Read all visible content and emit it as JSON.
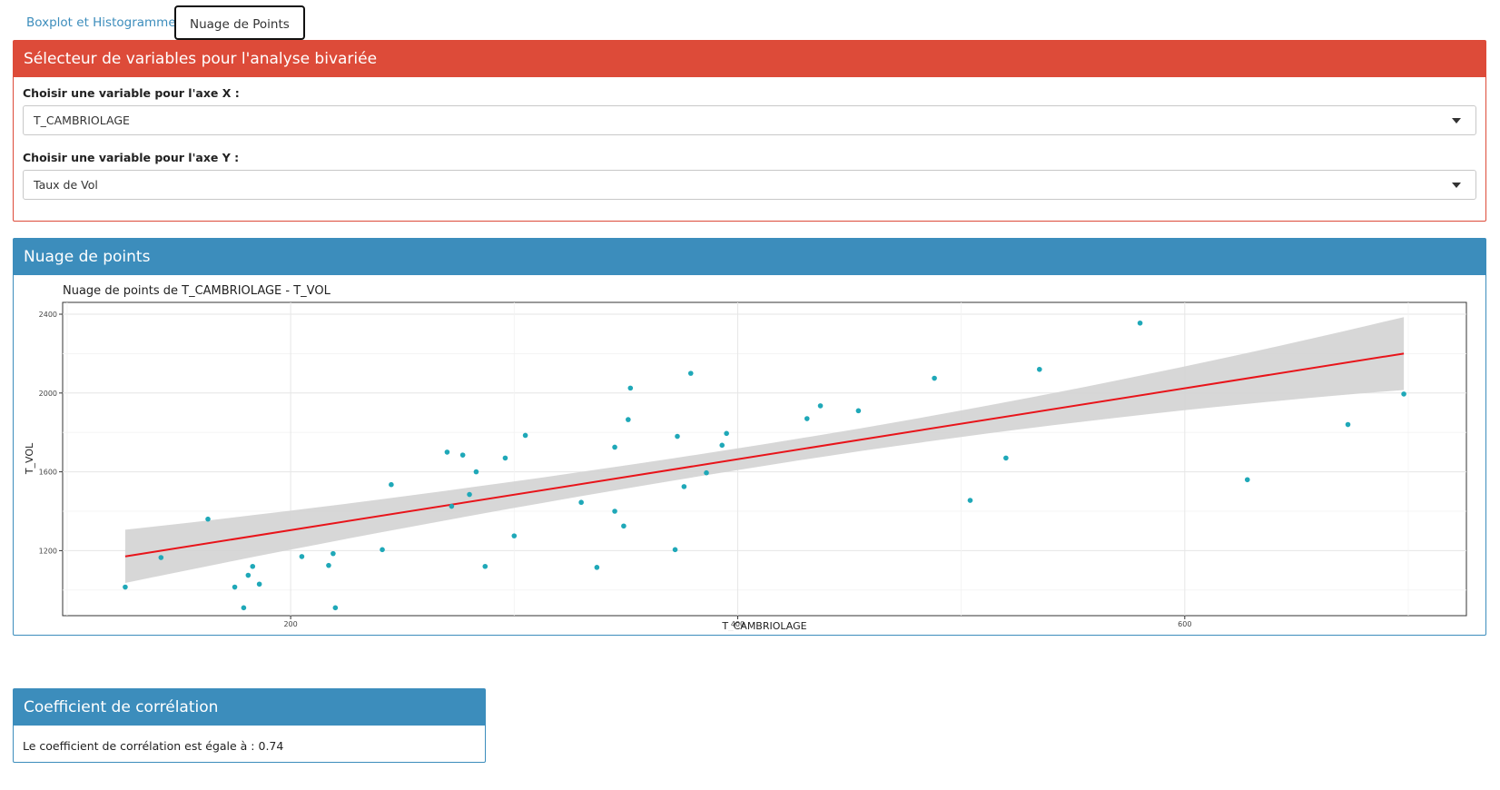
{
  "tabs": [
    {
      "label": "Boxplot et Histogramme"
    },
    {
      "label": "Nuage de Points"
    }
  ],
  "selector_box": {
    "title": "Sélecteur de variables pour l'analyse bivariée",
    "x_label": "Choisir une variable pour l'axe X :",
    "x_value": "T_CAMBRIOLAGE",
    "y_label": "Choisir une variable pour l'axe Y :",
    "y_value": "Taux de Vol"
  },
  "scatter_box": {
    "title": "Nuage de points"
  },
  "correlation_box": {
    "title": "Coefficient de corrélation",
    "text": "Le coefficient de corrélation est égale à : 0.74"
  },
  "colors": {
    "red_header": "#dd4b39",
    "blue_header": "#3c8dbc",
    "point": "#1fa8b8",
    "regression_line": "#e8141a",
    "confidence_band": "#d3d3d3"
  },
  "chart_data": {
    "type": "scatter",
    "title": "Nuage de points de T_CAMBRIOLAGE - T_VOL",
    "xlabel": "T_CAMBRIOLAGE",
    "ylabel": "T_VOL",
    "xlim": [
      98,
      726
    ],
    "ylim": [
      870,
      2460
    ],
    "xticks": [
      200,
      400,
      600
    ],
    "yticks": [
      1200,
      1600,
      2000,
      2400
    ],
    "grid": true,
    "points": [
      {
        "x": 126,
        "y": 1015
      },
      {
        "x": 142,
        "y": 1165
      },
      {
        "x": 163,
        "y": 1360
      },
      {
        "x": 175,
        "y": 1015
      },
      {
        "x": 179,
        "y": 910
      },
      {
        "x": 181,
        "y": 1075
      },
      {
        "x": 183,
        "y": 1120
      },
      {
        "x": 186,
        "y": 1030
      },
      {
        "x": 205,
        "y": 1170
      },
      {
        "x": 217,
        "y": 1125
      },
      {
        "x": 219,
        "y": 1185
      },
      {
        "x": 220,
        "y": 910
      },
      {
        "x": 241,
        "y": 1205
      },
      {
        "x": 245,
        "y": 1535
      },
      {
        "x": 270,
        "y": 1700
      },
      {
        "x": 272,
        "y": 1425
      },
      {
        "x": 277,
        "y": 1685
      },
      {
        "x": 280,
        "y": 1485
      },
      {
        "x": 283,
        "y": 1600
      },
      {
        "x": 287,
        "y": 1120
      },
      {
        "x": 296,
        "y": 1670
      },
      {
        "x": 300,
        "y": 1275
      },
      {
        "x": 305,
        "y": 1785
      },
      {
        "x": 330,
        "y": 1445
      },
      {
        "x": 337,
        "y": 1115
      },
      {
        "x": 345,
        "y": 1725
      },
      {
        "x": 345,
        "y": 1400
      },
      {
        "x": 349,
        "y": 1325
      },
      {
        "x": 351,
        "y": 1865
      },
      {
        "x": 352,
        "y": 2025
      },
      {
        "x": 372,
        "y": 1205
      },
      {
        "x": 373,
        "y": 1780
      },
      {
        "x": 376,
        "y": 1525
      },
      {
        "x": 379,
        "y": 2100
      },
      {
        "x": 386,
        "y": 1595
      },
      {
        "x": 393,
        "y": 1735
      },
      {
        "x": 395,
        "y": 1795
      },
      {
        "x": 431,
        "y": 1870
      },
      {
        "x": 437,
        "y": 1935
      },
      {
        "x": 454,
        "y": 1910
      },
      {
        "x": 488,
        "y": 2075
      },
      {
        "x": 504,
        "y": 1455
      },
      {
        "x": 520,
        "y": 1670
      },
      {
        "x": 535,
        "y": 2120
      },
      {
        "x": 580,
        "y": 2355
      },
      {
        "x": 628,
        "y": 1560
      },
      {
        "x": 673,
        "y": 1840
      },
      {
        "x": 698,
        "y": 1995
      }
    ],
    "regression": {
      "x_range": [
        126,
        698
      ],
      "slope": 1.8,
      "intercept": 944,
      "ci_half_width_start": 135,
      "ci_half_width_mid": 55,
      "ci_half_width_end": 185
    }
  }
}
